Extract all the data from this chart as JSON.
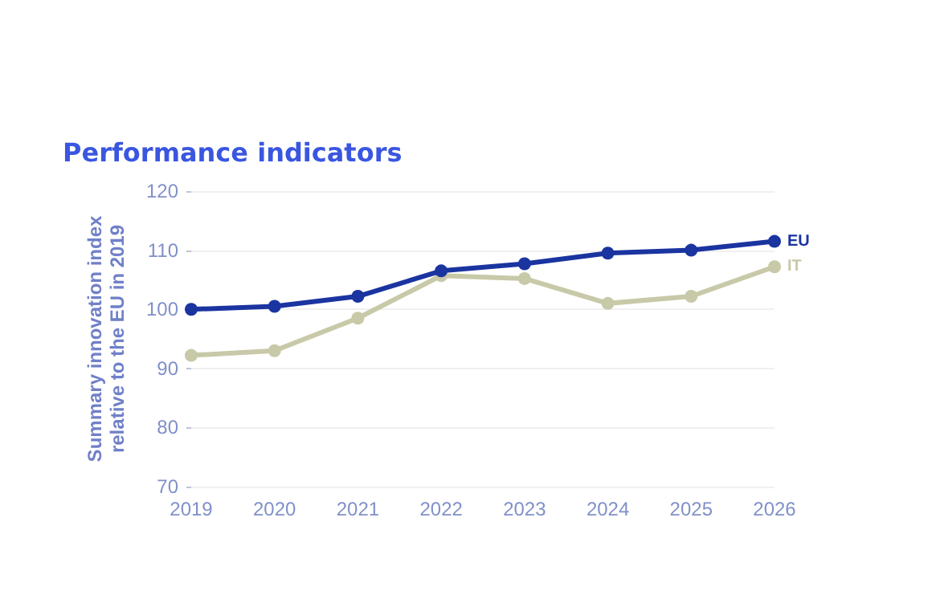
{
  "chart_data": {
    "type": "line",
    "title": "Performance indicators",
    "ylabel": "Summary innovation index\nrelative to the EU in 2019",
    "categories": [
      "2019",
      "2020",
      "2021",
      "2022",
      "2023",
      "2024",
      "2025",
      "2026"
    ],
    "series": [
      {
        "name": "EU",
        "color": "#1a34a0",
        "values": [
          100,
          100.5,
          102.2,
          106.5,
          107.7,
          109.5,
          110,
          111.5
        ]
      },
      {
        "name": "IT",
        "color": "#c8c9a8",
        "values": [
          92.2,
          93,
          98.5,
          105.7,
          105.2,
          101,
          102.2,
          107.2
        ]
      }
    ],
    "ylim": [
      70,
      120
    ],
    "yticks": [
      70,
      80,
      90,
      100,
      110,
      120
    ],
    "grid": "y",
    "marker": "circle",
    "legend": false
  }
}
